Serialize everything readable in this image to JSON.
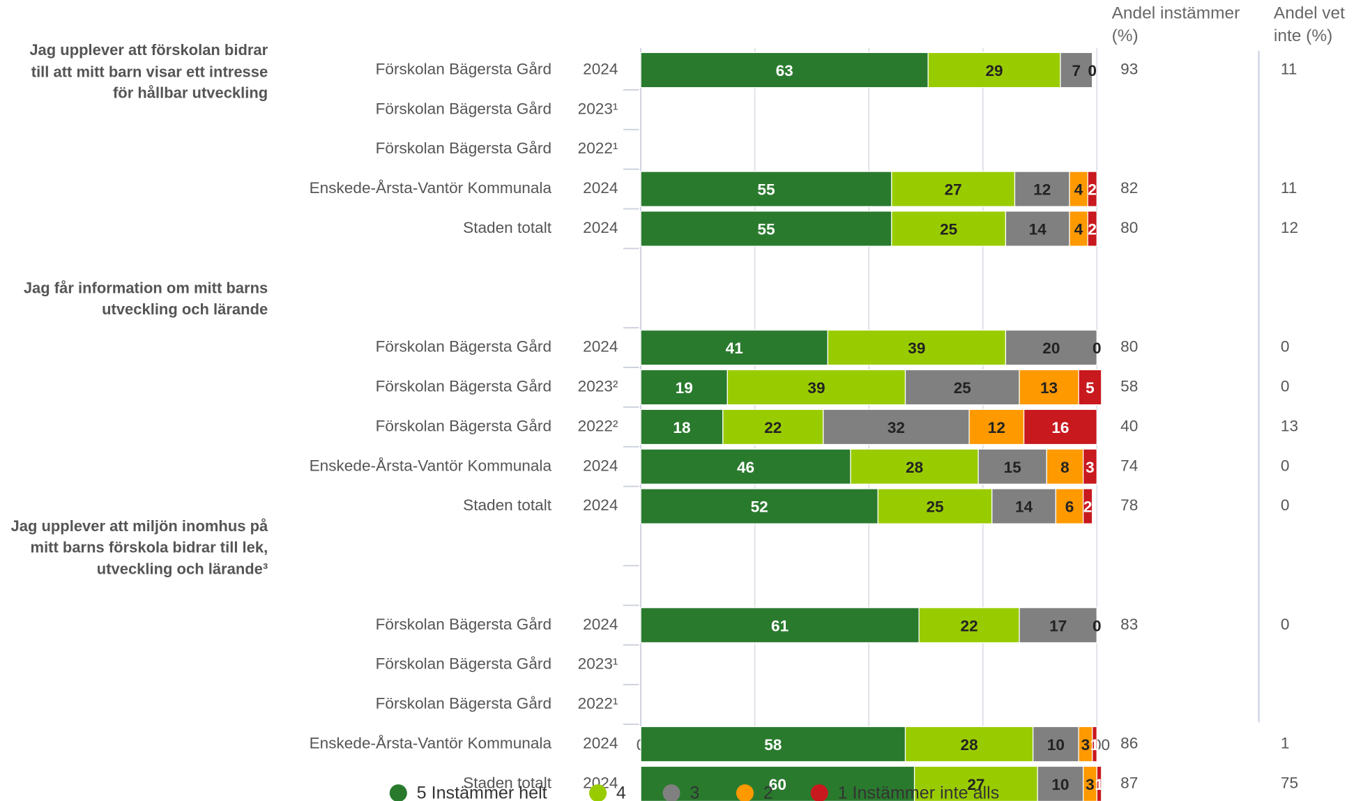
{
  "chart_data": {
    "type": "bar",
    "orientation": "horizontal",
    "stacked": true,
    "groups": [
      {
        "label": "Jag upplever att förskolan bidrar till att mitt barn visar ett intresse för hållbar utveckling",
        "rows": [
          {
            "name": "Förskolan Bägersta Gård",
            "year": "2024"
          },
          {
            "name": "Förskolan Bägersta Gård",
            "year": "2023¹"
          },
          {
            "name": "Förskolan Bägersta Gård",
            "year": "2022¹"
          },
          {
            "name": "Enskede-Årsta-Vantör Kommunala",
            "year": "2024"
          },
          {
            "name": "Staden totalt",
            "year": "2024"
          }
        ]
      },
      {
        "label": "Jag får information om mitt barns utveckling och lärande",
        "rows": [
          {
            "name": "Förskolan Bägersta Gård",
            "year": "2024"
          },
          {
            "name": "Förskolan Bägersta Gård",
            "year": "2023²"
          },
          {
            "name": "Förskolan Bägersta Gård",
            "year": "2022²"
          },
          {
            "name": "Enskede-Årsta-Vantör Kommunala",
            "year": "2024"
          },
          {
            "name": "Staden totalt",
            "year": "2024"
          }
        ]
      },
      {
        "label": "Jag upplever att miljön inomhus på mitt barns förskola bidrar till lek, utveckling och lärande³",
        "rows": [
          {
            "name": "Förskolan Bägersta Gård",
            "year": "2024"
          },
          {
            "name": "Förskolan Bägersta Gård",
            "year": "2023¹"
          },
          {
            "name": "Förskolan Bägersta Gård",
            "year": "2022¹"
          },
          {
            "name": "Enskede-Årsta-Vantör Kommunala",
            "year": "2024"
          },
          {
            "name": "Staden totalt",
            "year": "2024"
          }
        ]
      }
    ],
    "series": [
      {
        "name": "5 Instämmer helt",
        "color": "#2a7a2e",
        "label_color": "#ffffff",
        "values": [
          63,
          null,
          null,
          55,
          55,
          41,
          19,
          18,
          46,
          52,
          61,
          null,
          null,
          58,
          60
        ]
      },
      {
        "name": "4",
        "color": "#99cc00",
        "label_color": "#222222",
        "values": [
          29,
          null,
          null,
          27,
          25,
          39,
          39,
          22,
          28,
          25,
          22,
          null,
          null,
          28,
          27
        ]
      },
      {
        "name": "3",
        "color": "#808080",
        "label_color": "#222222",
        "values": [
          7,
          null,
          null,
          12,
          14,
          20,
          25,
          32,
          15,
          14,
          17,
          null,
          null,
          10,
          10
        ]
      },
      {
        "name": "2",
        "color": "#ff9900",
        "label_color": "#222222",
        "values": [
          0,
          null,
          null,
          4,
          4,
          0,
          13,
          12,
          8,
          6,
          0,
          null,
          null,
          3,
          3
        ]
      },
      {
        "name": "1 Instämmer inte alls",
        "color": "#c8191e",
        "label_color": "#ffffff",
        "values": [
          null,
          null,
          null,
          2,
          2,
          null,
          5,
          16,
          3,
          2,
          null,
          null,
          null,
          1,
          1
        ]
      }
    ],
    "columns": [
      {
        "title": "Andel instämmer (%)",
        "values": [
          93,
          null,
          null,
          82,
          80,
          80,
          58,
          40,
          74,
          78,
          83,
          null,
          null,
          86,
          87
        ]
      },
      {
        "title": "Andel vet inte (%)",
        "values": [
          11,
          null,
          null,
          11,
          12,
          0,
          0,
          13,
          0,
          0,
          0,
          null,
          null,
          1,
          75
        ]
      }
    ],
    "xlim": [
      0,
      100
    ],
    "xticks": [
      0,
      25,
      50,
      75,
      100
    ],
    "grid": true,
    "legend": "bottom"
  }
}
